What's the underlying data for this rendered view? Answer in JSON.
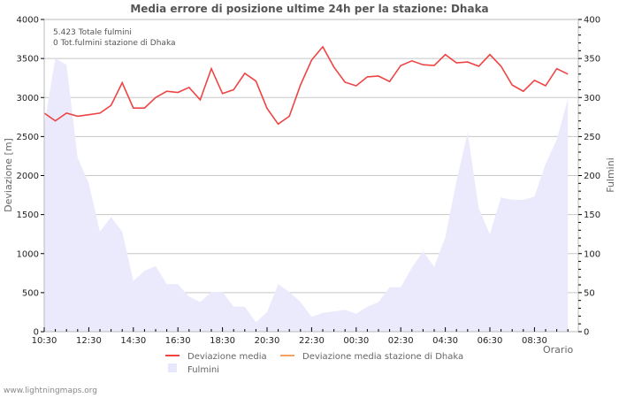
{
  "title": "Media errore di posizione ultime 24h per la stazione: Dhaka",
  "info": {
    "total": "5.423 Totale fulmini",
    "station_total": "0 Tot.fulmini stazione di Dhaka"
  },
  "axes": {
    "y_left_label": "Deviazione  [m]",
    "y_right_label": "Fulmini",
    "x_label": "Orario",
    "y_left_ticks": [
      "0",
      "500",
      "1000",
      "1500",
      "2000",
      "2500",
      "3000",
      "3500",
      "4000"
    ],
    "y_right_ticks": [
      "0",
      "50",
      "100",
      "150",
      "200",
      "250",
      "300",
      "350",
      "400"
    ],
    "x_ticks": [
      "10:30",
      "12:30",
      "14:30",
      "16:30",
      "18:30",
      "20:30",
      "22:30",
      "00:30",
      "02:30",
      "04:30",
      "06:30",
      "08:30"
    ]
  },
  "legend": {
    "items": [
      {
        "label": "Deviazione media",
        "color": "#ee4444"
      },
      {
        "label": "Deviazione media stazione di Dhaka",
        "color": "#f4a060"
      },
      {
        "label": "Fulmini",
        "color": "#e8e8fc"
      }
    ]
  },
  "footer": "www.lightningmaps.org",
  "colors": {
    "deviation_line": "#ee4444",
    "station_line": "#f4a060",
    "fulmini_fill": "#eaeafc",
    "grid": "#c8c8c8",
    "axis": "#bbbbbb"
  },
  "chart_data": {
    "type": "line",
    "title": "Media errore di posizione ultime 24h per la stazione: Dhaka",
    "xlabel": "Orario",
    "ylabel": "Deviazione  [m]",
    "y2label": "Fulmini",
    "ylim": [
      0,
      4000
    ],
    "y2lim": [
      0,
      400
    ],
    "grid": true,
    "legend_position": "bottom",
    "x_step": "30min",
    "x_start": "10:30",
    "x_tick_labels": [
      "10:30",
      "12:30",
      "14:30",
      "16:30",
      "18:30",
      "20:30",
      "22:30",
      "00:30",
      "02:30",
      "04:30",
      "06:30",
      "08:30"
    ],
    "series": [
      {
        "name": "Deviazione media",
        "axis": "left",
        "type": "line",
        "color": "#ee4444",
        "values": [
          2800,
          2700,
          2800,
          2760,
          2780,
          2800,
          2900,
          3190,
          2865,
          2865,
          3000,
          3080,
          3065,
          3130,
          2970,
          3370,
          3050,
          3100,
          3310,
          3210,
          2860,
          2660,
          2760,
          3160,
          3480,
          3650,
          3390,
          3195,
          3150,
          3265,
          3275,
          3205,
          3410,
          3470,
          3420,
          3410,
          3550,
          3445,
          3455,
          3400,
          3550,
          3400,
          3160,
          3080,
          3220,
          3150,
          3370,
          3300
        ]
      },
      {
        "name": "Deviazione media stazione di Dhaka",
        "axis": "left",
        "type": "line",
        "color": "#f4a060",
        "values": []
      },
      {
        "name": "Fulmini",
        "axis": "right",
        "type": "area",
        "color": "#eaeafc",
        "values": [
          265,
          350,
          342,
          223,
          190,
          128,
          147,
          128,
          65,
          78,
          84,
          61,
          61,
          45,
          38,
          51,
          51,
          32,
          32,
          12,
          25,
          61,
          51,
          38,
          19,
          24,
          26,
          28,
          23,
          32,
          38,
          57,
          57,
          82,
          103,
          83,
          121,
          193,
          255,
          158,
          125,
          172,
          169,
          169,
          173,
          215,
          246,
          298
        ]
      }
    ]
  }
}
